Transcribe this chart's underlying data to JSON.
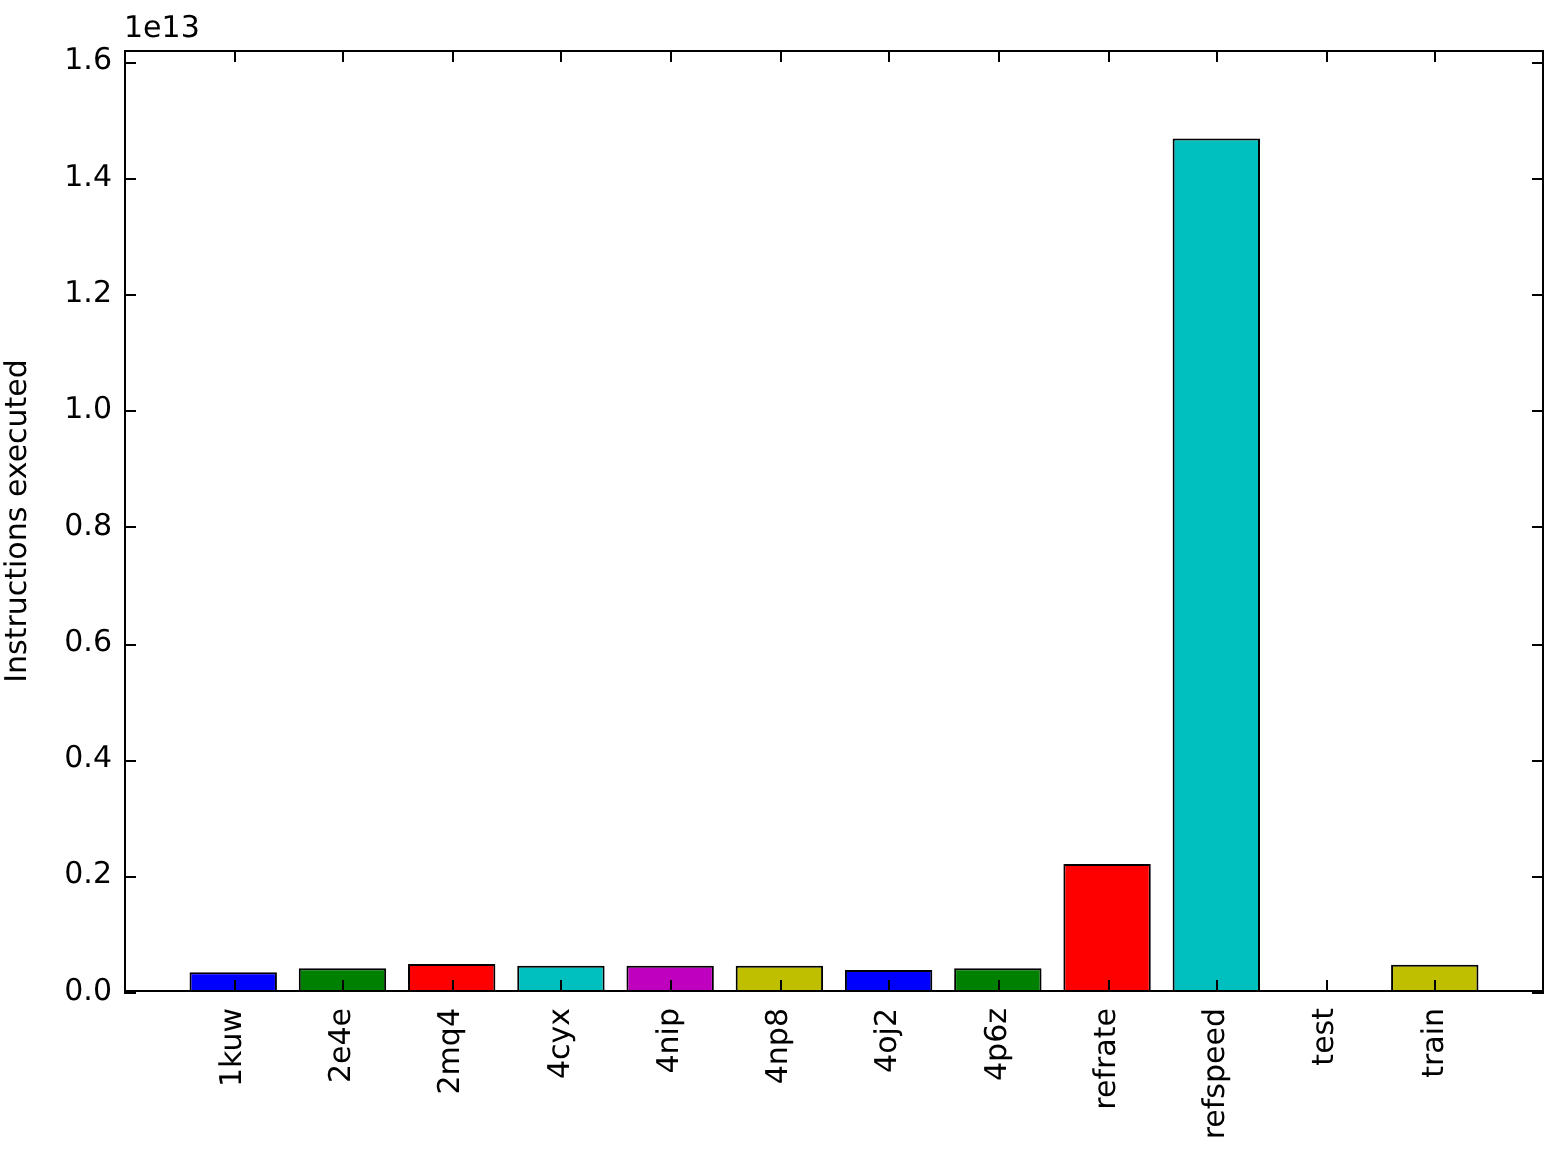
{
  "chart_data": {
    "type": "bar",
    "ylabel": "Instructions executed",
    "annotations": [
      "1e13"
    ],
    "categories": [
      "1kuw",
      "2e4e",
      "2mq4",
      "4cyx",
      "4nip",
      "4np8",
      "4oj2",
      "4p6z",
      "refrate",
      "refspeed",
      "test",
      "train"
    ],
    "values": [
      0.034,
      0.041,
      0.048,
      0.045,
      0.045,
      0.045,
      0.038,
      0.041,
      0.22,
      1.468,
      0,
      0.047
    ],
    "colors": [
      "#0000ff",
      "#008000",
      "#ff0000",
      "#00bfbf",
      "#bf00bf",
      "#bfbf00",
      "#0000ff",
      "#008000",
      "#ff0000",
      "#00bfbf",
      "#bf00bf",
      "#bfbf00"
    ],
    "ylim": [
      0,
      1.62
    ],
    "yticks": [
      {
        "value": 0,
        "label": "0.0"
      },
      0.2,
      0.4,
      0.6,
      0.8,
      {
        "value": 1,
        "label": "1.0"
      },
      1.2,
      1.4,
      1.6
    ]
  }
}
